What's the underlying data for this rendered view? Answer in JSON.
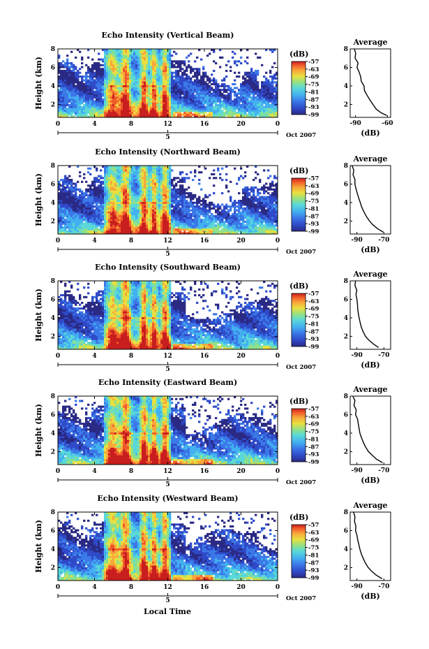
{
  "figure": {
    "x_axis_label": "Local Time",
    "colorbar_unit": "(dB)",
    "date_label": "Oct 2007",
    "average_xlabel": "(dB)"
  },
  "chart_data": [
    {
      "type": "heatmap",
      "title": "Echo Intensity (Vertical Beam)",
      "ylabel": "Height (km)",
      "x_ticks": [
        "0",
        "4",
        "8",
        "12",
        "16",
        "20",
        "0"
      ],
      "date_tick": "5",
      "y_ticks": [
        "2",
        "4",
        "6",
        "8"
      ],
      "x_range_hours": [
        0,
        24
      ],
      "y_range_km": [
        0.6,
        8
      ],
      "colorbar_ticks": [
        "-57",
        "-63",
        "-69",
        "-75",
        "-81",
        "-87",
        "-93",
        "-99"
      ],
      "colorbar_range_db": [
        -99,
        -57
      ],
      "average": {
        "title": "Average",
        "x_ticks": [
          "-90",
          "-60"
        ],
        "xlim": [
          -95,
          -57
        ],
        "y_ticks": [
          "2",
          "4",
          "6",
          "8"
        ],
        "ylim": [
          0.6,
          8
        ],
        "points": [
          [
            -91,
            8
          ],
          [
            -89.8,
            7.5
          ],
          [
            -90.4,
            7.0
          ],
          [
            -87.6,
            6.5
          ],
          [
            -88.6,
            6.0
          ],
          [
            -86.6,
            5.5
          ],
          [
            -85.2,
            5.0
          ],
          [
            -84.6,
            4.5
          ],
          [
            -82.0,
            4.0
          ],
          [
            -81.6,
            3.5
          ],
          [
            -79.2,
            3.0
          ],
          [
            -76.6,
            2.5
          ],
          [
            -73.6,
            2.0
          ],
          [
            -70.6,
            1.5
          ],
          [
            -66.0,
            1.1
          ],
          [
            -60.6,
            0.8
          ]
        ]
      }
    },
    {
      "type": "heatmap",
      "title": "Echo Intensity (Northward Beam)",
      "ylabel": "Height (km)",
      "x_ticks": [
        "0",
        "4",
        "8",
        "12",
        "16",
        "20",
        "0"
      ],
      "date_tick": "5",
      "y_ticks": [
        "2",
        "4",
        "6",
        "8"
      ],
      "x_range_hours": [
        0,
        24
      ],
      "y_range_km": [
        0.6,
        8
      ],
      "colorbar_ticks": [
        "-57",
        "-63",
        "-69",
        "-75",
        "-81",
        "-87",
        "-93",
        "-99"
      ],
      "colorbar_range_db": [
        -99,
        -57
      ],
      "average": {
        "title": "Average",
        "x_ticks": [
          "-90",
          "-70"
        ],
        "xlim": [
          -95,
          -65
        ],
        "y_ticks": [
          "2",
          "4",
          "6",
          "8"
        ],
        "ylim": [
          0.6,
          8
        ],
        "points": [
          [
            -93.6,
            8
          ],
          [
            -92.3,
            7.5
          ],
          [
            -92.9,
            7.0
          ],
          [
            -91.5,
            6.5
          ],
          [
            -91.5,
            6.0
          ],
          [
            -90.7,
            5.5
          ],
          [
            -89.7,
            5.0
          ],
          [
            -88.7,
            4.5
          ],
          [
            -87.5,
            4.0
          ],
          [
            -86.4,
            3.5
          ],
          [
            -84.8,
            3.0
          ],
          [
            -83.0,
            2.5
          ],
          [
            -80.6,
            2.0
          ],
          [
            -78.2,
            1.6
          ],
          [
            -74.9,
            1.2
          ],
          [
            -70.4,
            0.8
          ]
        ]
      }
    },
    {
      "type": "heatmap",
      "title": "Echo Intensity (Southward Beam)",
      "ylabel": "Height (km)",
      "x_ticks": [
        "0",
        "4",
        "8",
        "12",
        "16",
        "20",
        "0"
      ],
      "date_tick": "5",
      "y_ticks": [
        "2",
        "4",
        "6",
        "8"
      ],
      "x_range_hours": [
        0,
        24
      ],
      "y_range_km": [
        0.6,
        8
      ],
      "colorbar_ticks": [
        "-57",
        "-63",
        "-69",
        "-75",
        "-81",
        "-87",
        "-93",
        "-99"
      ],
      "colorbar_range_db": [
        -99,
        -57
      ],
      "average": {
        "title": "Average",
        "x_ticks": [
          "-90",
          "-70"
        ],
        "xlim": [
          -95,
          -65
        ],
        "y_ticks": [
          "2",
          "4",
          "6",
          "8"
        ],
        "ylim": [
          0.6,
          8
        ],
        "points": [
          [
            -91.0,
            8
          ],
          [
            -91.5,
            7.5
          ],
          [
            -90.1,
            7.0
          ],
          [
            -90.7,
            6.5
          ],
          [
            -90.0,
            6.0
          ],
          [
            -89.6,
            5.5
          ],
          [
            -89.4,
            5.0
          ],
          [
            -89.0,
            4.5
          ],
          [
            -88.4,
            4.0
          ],
          [
            -87.6,
            3.5
          ],
          [
            -86.8,
            3.0
          ],
          [
            -85.4,
            2.5
          ],
          [
            -83.6,
            2.0
          ],
          [
            -81.2,
            1.6
          ],
          [
            -78.0,
            1.2
          ],
          [
            -74.0,
            0.8
          ]
        ]
      }
    },
    {
      "type": "heatmap",
      "title": "Echo Intensity (Eastward Beam)",
      "ylabel": "Height (km)",
      "x_ticks": [
        "0",
        "4",
        "8",
        "12",
        "16",
        "20",
        "0"
      ],
      "date_tick": "5",
      "y_ticks": [
        "2",
        "4",
        "6",
        "8"
      ],
      "x_range_hours": [
        0,
        24
      ],
      "y_range_km": [
        0.6,
        8
      ],
      "colorbar_ticks": [
        "-57",
        "-63",
        "-69",
        "-75",
        "-81",
        "-87",
        "-93",
        "-99"
      ],
      "colorbar_range_db": [
        -99,
        -57
      ],
      "average": {
        "title": "Average",
        "x_ticks": [
          "-90",
          "-70"
        ],
        "xlim": [
          -95,
          -65
        ],
        "y_ticks": [
          "2",
          "4",
          "6",
          "8"
        ],
        "ylim": [
          0.6,
          8
        ],
        "points": [
          [
            -93.0,
            8
          ],
          [
            -91.5,
            7.5
          ],
          [
            -92.2,
            7.0
          ],
          [
            -90.5,
            6.5
          ],
          [
            -91.0,
            6.0
          ],
          [
            -89.5,
            5.5
          ],
          [
            -89.0,
            5.0
          ],
          [
            -88.4,
            4.5
          ],
          [
            -87.8,
            4.0
          ],
          [
            -86.6,
            3.5
          ],
          [
            -85.2,
            3.0
          ],
          [
            -83.6,
            2.5
          ],
          [
            -81.4,
            2.0
          ],
          [
            -78.6,
            1.6
          ],
          [
            -75.6,
            1.2
          ],
          [
            -71.0,
            0.8
          ]
        ]
      }
    },
    {
      "type": "heatmap",
      "title": "Echo Intensity (Westward Beam)",
      "ylabel": "Height (km)",
      "x_ticks": [
        "0",
        "4",
        "8",
        "12",
        "16",
        "20",
        "0"
      ],
      "date_tick": "5",
      "y_ticks": [
        "2",
        "4",
        "6",
        "8"
      ],
      "x_range_hours": [
        0,
        24
      ],
      "y_range_km": [
        0.6,
        8
      ],
      "colorbar_ticks": [
        "-57",
        "-63",
        "-69",
        "-75",
        "-81",
        "-87",
        "-93",
        "-99"
      ],
      "colorbar_range_db": [
        -99,
        -57
      ],
      "average": {
        "title": "Average",
        "x_ticks": [
          "-90",
          "-70"
        ],
        "xlim": [
          -95,
          -65
        ],
        "y_ticks": [
          "2",
          "4",
          "6",
          "8"
        ],
        "ylim": [
          0.6,
          8
        ],
        "points": [
          [
            -92.5,
            8
          ],
          [
            -91.5,
            7.5
          ],
          [
            -91.8,
            7.0
          ],
          [
            -90.8,
            6.5
          ],
          [
            -91.0,
            6.0
          ],
          [
            -90.0,
            5.5
          ],
          [
            -89.4,
            5.0
          ],
          [
            -88.6,
            4.5
          ],
          [
            -87.8,
            4.0
          ],
          [
            -86.8,
            3.5
          ],
          [
            -85.4,
            3.0
          ],
          [
            -83.8,
            2.5
          ],
          [
            -81.6,
            2.0
          ],
          [
            -79.0,
            1.6
          ],
          [
            -75.8,
            1.2
          ],
          [
            -71.4,
            0.8
          ]
        ]
      }
    }
  ],
  "colors": {
    "colormap": [
      "#2a2a85",
      "#2f4ac8",
      "#3b78e8",
      "#43b0f0",
      "#5ad8d8",
      "#8ee08a",
      "#e8e040",
      "#f8a83a",
      "#f05a2a",
      "#c81e1e"
    ],
    "axis": "#000000"
  }
}
